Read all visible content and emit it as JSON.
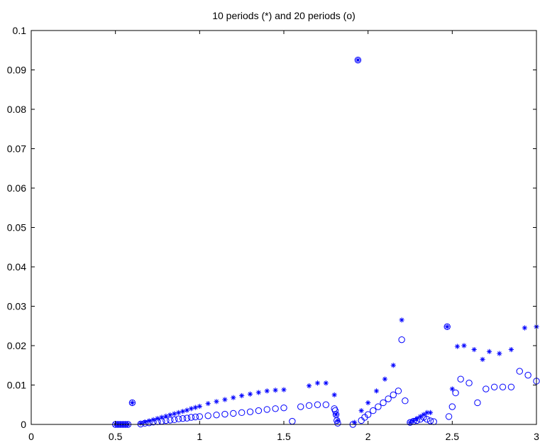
{
  "chart_data": {
    "type": "scatter",
    "title": "10 periods (*) and 20 periods (o)",
    "xlabel": "",
    "ylabel": "",
    "xlim": [
      0,
      3
    ],
    "ylim": [
      0,
      0.1
    ],
    "xticks": [
      0,
      0.5,
      1,
      1.5,
      2,
      2.5,
      3
    ],
    "xtick_labels": [
      "0",
      "0.5",
      "1",
      "1.5",
      "2",
      "2.5",
      "3"
    ],
    "yticks": [
      0,
      0.01,
      0.02,
      0.03,
      0.04,
      0.05,
      0.06,
      0.07,
      0.08,
      0.09,
      0.1
    ],
    "ytick_labels": [
      "0",
      "0.01",
      "0.02",
      "0.03",
      "0.04",
      "0.05",
      "0.06",
      "0.07",
      "0.08",
      "0.09",
      "0.1"
    ],
    "grid": false,
    "color": "#0000ff",
    "series": [
      {
        "marker": "*",
        "x": [
          0.5,
          0.515,
          0.53,
          0.545,
          0.56,
          0.575,
          0.6,
          0.65,
          0.675,
          0.7,
          0.725,
          0.75,
          0.775,
          0.8,
          0.825,
          0.85,
          0.875,
          0.9,
          0.925,
          0.95,
          0.975,
          1.0,
          1.05,
          1.1,
          1.15,
          1.2,
          1.25,
          1.3,
          1.35,
          1.4,
          1.45,
          1.5,
          1.65,
          1.7,
          1.75,
          1.8,
          1.81,
          1.82,
          1.92,
          1.94,
          1.96,
          2.0,
          2.05,
          2.1,
          2.15,
          2.2,
          2.25,
          2.27,
          2.29,
          2.31,
          2.33,
          2.35,
          2.37,
          2.47,
          2.5,
          2.53,
          2.57,
          2.63,
          2.68,
          2.72,
          2.78,
          2.85,
          2.93,
          3.0
        ],
        "y": [
          0,
          0,
          0,
          0,
          0,
          0,
          0.0055,
          0.0003,
          0.0006,
          0.0009,
          0.0012,
          0.0015,
          0.0018,
          0.0021,
          0.0024,
          0.0027,
          0.003,
          0.0033,
          0.0036,
          0.004,
          0.0043,
          0.0046,
          0.0053,
          0.0058,
          0.0063,
          0.0068,
          0.0073,
          0.0077,
          0.0081,
          0.0085,
          0.0087,
          0.0088,
          0.0098,
          0.0105,
          0.0105,
          0.0075,
          0.0025,
          0.001,
          0.0005,
          0.0925,
          0.0035,
          0.0055,
          0.0085,
          0.0115,
          0.015,
          0.0265,
          0.0005,
          0.001,
          0.0015,
          0.002,
          0.0025,
          0.003,
          0.003,
          0.0248,
          0.009,
          0.0198,
          0.02,
          0.019,
          0.0165,
          0.0185,
          0.018,
          0.019,
          0.0245,
          0.0248
        ]
      },
      {
        "marker": "o",
        "x": [
          0.5,
          0.515,
          0.53,
          0.545,
          0.56,
          0.575,
          0.6,
          0.65,
          0.675,
          0.7,
          0.725,
          0.75,
          0.775,
          0.8,
          0.825,
          0.85,
          0.875,
          0.9,
          0.925,
          0.95,
          0.975,
          1.0,
          1.05,
          1.1,
          1.15,
          1.2,
          1.25,
          1.3,
          1.35,
          1.4,
          1.45,
          1.5,
          1.55,
          1.6,
          1.65,
          1.7,
          1.75,
          1.8,
          1.805,
          1.81,
          1.815,
          1.82,
          1.91,
          1.94,
          1.96,
          1.98,
          2.0,
          2.03,
          2.06,
          2.09,
          2.12,
          2.15,
          2.18,
          2.2,
          2.22,
          2.25,
          2.27,
          2.29,
          2.31,
          2.33,
          2.35,
          2.37,
          2.39,
          2.47,
          2.48,
          2.5,
          2.52,
          2.55,
          2.6,
          2.65,
          2.7,
          2.75,
          2.8,
          2.85,
          2.9,
          2.95,
          3.0
        ],
        "y": [
          0,
          0,
          0,
          0,
          0,
          0,
          0.0055,
          0.0001,
          0.0003,
          0.0004,
          0.0006,
          0.0007,
          0.0008,
          0.001,
          0.0011,
          0.0012,
          0.0014,
          0.0015,
          0.0016,
          0.0018,
          0.0019,
          0.002,
          0.0022,
          0.0024,
          0.0026,
          0.0028,
          0.003,
          0.0032,
          0.0035,
          0.0038,
          0.004,
          0.0042,
          0.0008,
          0.0045,
          0.0048,
          0.005,
          0.005,
          0.004,
          0.0035,
          0.0025,
          0.001,
          0.0003,
          0.0,
          0.0925,
          0.001,
          0.0018,
          0.0025,
          0.0035,
          0.0045,
          0.0055,
          0.0065,
          0.0075,
          0.0085,
          0.0215,
          0.006,
          0.0005,
          0.0008,
          0.001,
          0.0013,
          0.0018,
          0.0013,
          0.0009,
          0.0007,
          0.0248,
          0.002,
          0.0045,
          0.008,
          0.0115,
          0.0105,
          0.0055,
          0.009,
          0.0095,
          0.0095,
          0.0095,
          0.0135,
          0.0125,
          0.011
        ]
      }
    ]
  }
}
